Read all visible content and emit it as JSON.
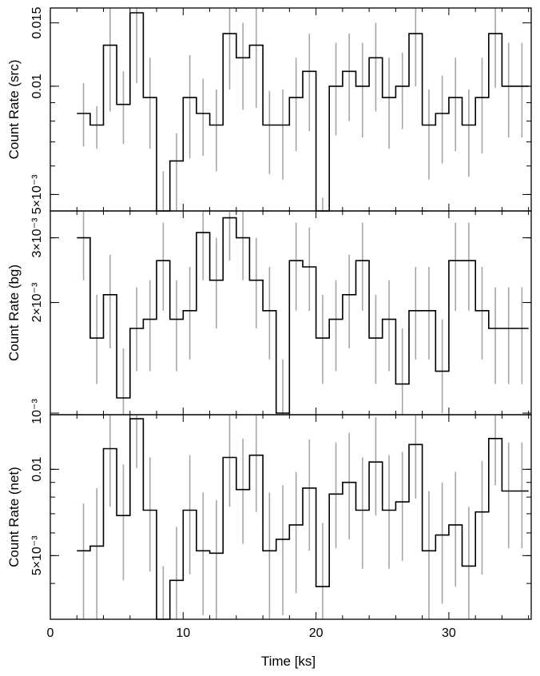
{
  "chart_data": {
    "type": "line",
    "title": "",
    "xlabel": "Time [ks]",
    "xlim": [
      0,
      36.2
    ],
    "x_ticks": [
      0,
      10,
      20,
      30
    ],
    "bin_width_ks": 1,
    "bin_centers": [
      2.5,
      3.5,
      4.5,
      5.5,
      6.5,
      7.5,
      8.5,
      9.5,
      10.5,
      11.5,
      12.5,
      13.5,
      14.5,
      15.5,
      16.5,
      17.5,
      18.5,
      19.5,
      20.5,
      21.5,
      22.5,
      23.5,
      24.5,
      25.5,
      26.5,
      27.5,
      28.5,
      29.5,
      30.5,
      31.5,
      32.5,
      33.5,
      34.5,
      35.5
    ],
    "panels": [
      {
        "name": "src",
        "ylabel": "Count Rate (src)",
        "yscale": "log",
        "ylim": [
          0.0045,
          0.0165
        ],
        "y_ticks": [
          {
            "value": 0.005,
            "label": "5×10⁻³"
          },
          {
            "value": 0.01,
            "label": "0.01"
          },
          {
            "value": 0.015,
            "label": "0.015"
          }
        ],
        "values": [
          0.0084,
          0.0078,
          0.013,
          0.0089,
          0.016,
          0.0093,
          0.0045,
          0.0062,
          0.0093,
          0.0084,
          0.0078,
          0.014,
          0.012,
          0.013,
          0.0078,
          0.0078,
          0.0093,
          0.011,
          0.0045,
          0.01,
          0.011,
          0.01,
          0.012,
          0.0093,
          0.01,
          0.014,
          0.0078,
          0.0084,
          0.0093,
          0.0078,
          0.0093,
          0.014,
          0.01,
          0.01
        ],
        "err_low": [
          0.0068,
          0.0067,
          0.0085,
          0.0069,
          0.0102,
          0.0067,
          0.0045,
          0.0045,
          0.0063,
          0.0064,
          0.0058,
          0.0098,
          0.0086,
          0.0087,
          0.0057,
          0.0055,
          0.0066,
          0.0075,
          0.0045,
          0.0073,
          0.008,
          0.0072,
          0.0085,
          0.0067,
          0.0076,
          0.01,
          0.0055,
          0.0061,
          0.0066,
          0.0056,
          0.0065,
          0.0099,
          0.0072,
          0.0072
        ],
        "err_high": [
          0.0102,
          0.0088,
          0.017,
          0.011,
          0.017,
          0.012,
          0.0058,
          0.0074,
          0.0122,
          0.0105,
          0.0098,
          0.017,
          0.015,
          0.017,
          0.0097,
          0.0098,
          0.012,
          0.014,
          0.0049,
          0.0132,
          0.014,
          0.0132,
          0.015,
          0.012,
          0.0124,
          0.017,
          0.0098,
          0.0107,
          0.012,
          0.0098,
          0.012,
          0.017,
          0.0132,
          0.0132
        ]
      },
      {
        "name": "bg",
        "ylabel": "Count Rate (bg)",
        "yscale": "log",
        "ylim": [
          0.00099,
          0.00355
        ],
        "y_ticks": [
          {
            "value": 0.001,
            "label": "10⁻³"
          },
          {
            "value": 0.002,
            "label": "2×10⁻³"
          },
          {
            "value": 0.003,
            "label": "3×10⁻³"
          }
        ],
        "values": [
          0.003,
          0.0016,
          0.0021,
          0.0011,
          0.0017,
          0.0018,
          0.0026,
          0.0018,
          0.0019,
          0.0031,
          0.0023,
          0.0034,
          0.003,
          0.0023,
          0.0019,
          0.001,
          0.0026,
          0.0025,
          0.0016,
          0.0018,
          0.0021,
          0.0026,
          0.0016,
          0.0018,
          0.0012,
          0.0019,
          0.0019,
          0.0013,
          0.0026,
          0.0026,
          0.0019,
          0.0017,
          0.0017,
          0.0017
        ],
        "err_low": [
          0.0023,
          0.0012,
          0.0015,
          0.00099,
          0.0013,
          0.0013,
          0.0019,
          0.0013,
          0.0014,
          0.0023,
          0.0017,
          0.0026,
          0.0023,
          0.0017,
          0.0014,
          0.00099,
          0.0019,
          0.0019,
          0.0012,
          0.0013,
          0.0015,
          0.0019,
          0.0012,
          0.0013,
          0.00099,
          0.0014,
          0.0014,
          0.001,
          0.0019,
          0.0019,
          0.0014,
          0.0012,
          0.0012,
          0.0012
        ],
        "err_high": [
          0.0036,
          0.0021,
          0.0027,
          0.0015,
          0.0022,
          0.0023,
          0.0033,
          0.0023,
          0.0025,
          0.0036,
          0.003,
          0.0036,
          0.0036,
          0.003,
          0.0025,
          0.0014,
          0.0033,
          0.0032,
          0.0021,
          0.0023,
          0.0027,
          0.0033,
          0.0021,
          0.0023,
          0.0017,
          0.0025,
          0.0025,
          0.0018,
          0.0033,
          0.0033,
          0.0025,
          0.0022,
          0.0022,
          0.0022
        ]
      },
      {
        "name": "net",
        "ylabel": "Count Rate (net)",
        "yscale": "log",
        "ylim": [
          0.003,
          0.0155
        ],
        "y_ticks": [
          {
            "value": 0.005,
            "label": "5×10⁻³"
          },
          {
            "value": 0.01,
            "label": "0.01"
          }
        ],
        "values": [
          0.0052,
          0.0054,
          0.0118,
          0.0069,
          0.015,
          0.0072,
          0.003,
          0.0041,
          0.0072,
          0.0052,
          0.0051,
          0.011,
          0.0085,
          0.0112,
          0.0052,
          0.0057,
          0.0064,
          0.0086,
          0.0039,
          0.0082,
          0.009,
          0.0072,
          0.0106,
          0.0072,
          0.0077,
          0.0122,
          0.0052,
          0.0059,
          0.0064,
          0.0046,
          0.0071,
          0.0128,
          0.0084,
          0.0084
        ],
        "err_low": [
          0.003,
          0.003,
          0.0074,
          0.0041,
          0.0101,
          0.0044,
          0.003,
          0.003,
          0.0043,
          0.0031,
          0.003,
          0.0074,
          0.0055,
          0.0071,
          0.003,
          0.0031,
          0.0037,
          0.0052,
          0.003,
          0.0053,
          0.0057,
          0.0045,
          0.0069,
          0.0045,
          0.0048,
          0.0079,
          0.003,
          0.0034,
          0.0039,
          0.003,
          0.0043,
          0.0088,
          0.0053,
          0.0053
        ],
        "err_high": [
          0.0076,
          0.0086,
          0.016,
          0.0104,
          0.016,
          0.011,
          0.0046,
          0.0063,
          0.0112,
          0.0083,
          0.0078,
          0.016,
          0.0128,
          0.016,
          0.0083,
          0.0088,
          0.0098,
          0.0127,
          0.0065,
          0.0124,
          0.0134,
          0.011,
          0.0152,
          0.0112,
          0.0115,
          0.016,
          0.0084,
          0.009,
          0.0098,
          0.0074,
          0.0107,
          0.016,
          0.0124,
          0.0124
        ]
      }
    ],
    "colors": {
      "line": "#000000",
      "errorbar": "#a6a6a6",
      "frame": "#000000"
    }
  }
}
